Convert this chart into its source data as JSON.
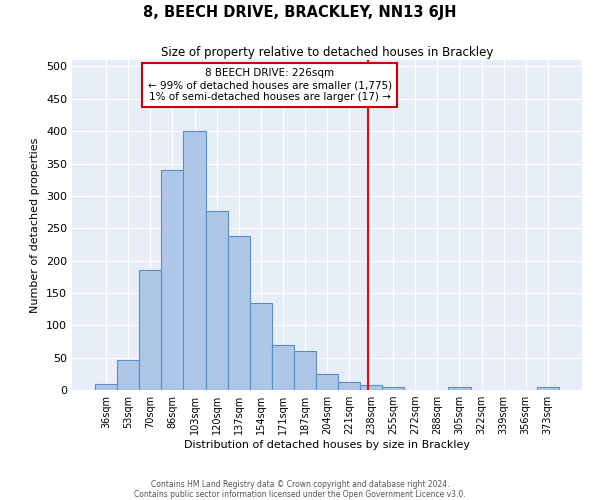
{
  "title": "8, BEECH DRIVE, BRACKLEY, NN13 6JH",
  "subtitle": "Size of property relative to detached houses in Brackley",
  "xlabel": "Distribution of detached houses by size in Brackley",
  "ylabel": "Number of detached properties",
  "bin_labels": [
    "36sqm",
    "53sqm",
    "70sqm",
    "86sqm",
    "103sqm",
    "120sqm",
    "137sqm",
    "154sqm",
    "171sqm",
    "187sqm",
    "204sqm",
    "221sqm",
    "238sqm",
    "255sqm",
    "272sqm",
    "288sqm",
    "305sqm",
    "322sqm",
    "339sqm",
    "356sqm",
    "373sqm"
  ],
  "bar_heights": [
    10,
    46,
    185,
    340,
    400,
    277,
    238,
    135,
    70,
    60,
    25,
    12,
    7,
    5,
    0,
    0,
    5,
    0,
    0,
    0,
    5
  ],
  "bar_color": "#aec6e8",
  "bar_edge_color": "#5b8ec4",
  "bg_color": "#e8eef8",
  "grid_color": "#ffffff",
  "red_line_x": 11.85,
  "annotation_text": "8 BEECH DRIVE: 226sqm\n← 99% of detached houses are smaller (1,775)\n1% of semi-detached houses are larger (17) →",
  "annotation_box_color": "#ffffff",
  "annotation_box_edge_color": "#cc0000",
  "footer_line1": "Contains HM Land Registry data © Crown copyright and database right 2024.",
  "footer_line2": "Contains public sector information licensed under the Open Government Licence v3.0.",
  "ylim": [
    0,
    510
  ],
  "yticks": [
    0,
    50,
    100,
    150,
    200,
    250,
    300,
    350,
    400,
    450,
    500
  ]
}
